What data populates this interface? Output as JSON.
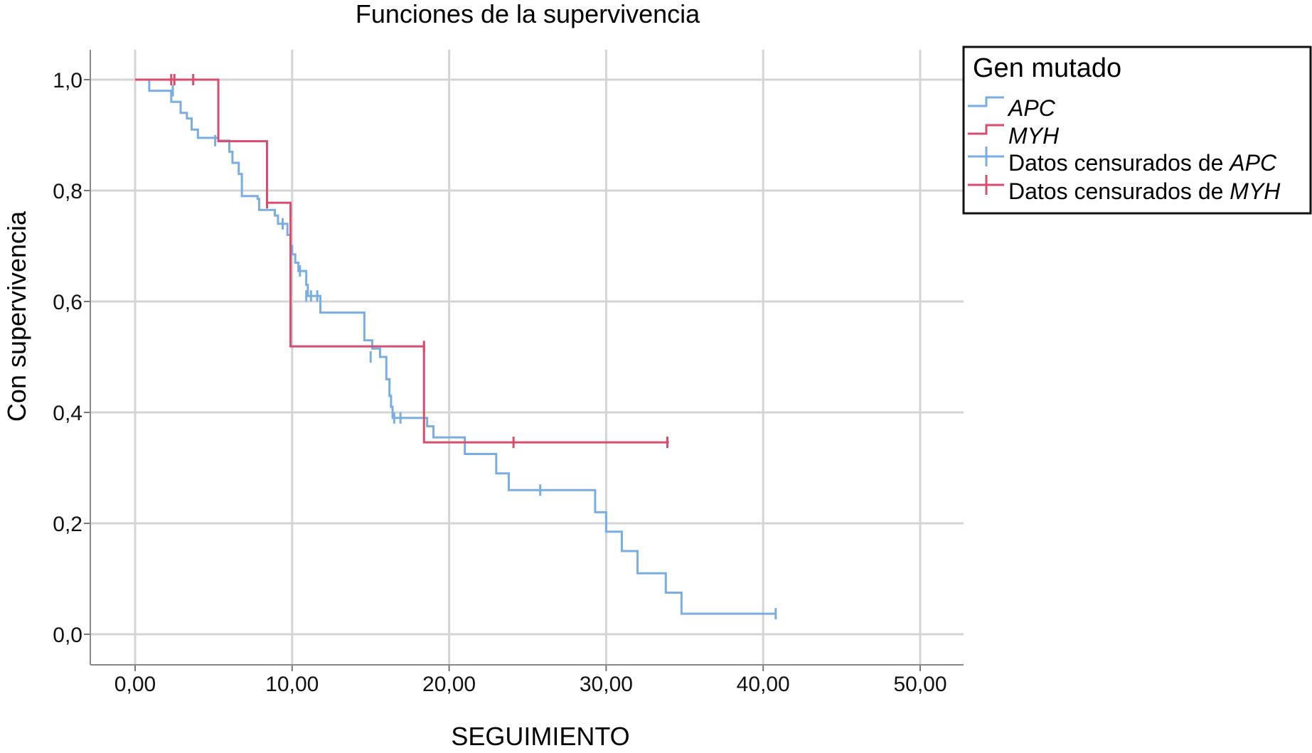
{
  "chart_data": {
    "type": "line",
    "title": "Funciones de la supervivencia",
    "xlabel": "SEGUIMIENTO",
    "ylabel": "Con supervivencia",
    "xlim": [
      0,
      50
    ],
    "ylim": [
      0,
      1
    ],
    "x_ticks": [
      "0,00",
      "10,00",
      "20,00",
      "30,00",
      "40,00",
      "50,00"
    ],
    "y_ticks": [
      "0,0",
      "0,2",
      "0,4",
      "0,6",
      "0,8",
      "1,0"
    ],
    "grid": true,
    "legend": {
      "title": "Gen mutado",
      "placement": "top-right",
      "entries": [
        {
          "prefix": "",
          "name": "APC",
          "kind": "line",
          "series": "APC"
        },
        {
          "prefix": "",
          "name": "MYH",
          "kind": "line",
          "series": "MYH"
        },
        {
          "prefix": "Datos censurados de ",
          "name": "APC",
          "kind": "censor",
          "series": "APC"
        },
        {
          "prefix": "Datos censurados de ",
          "name": "MYH",
          "kind": "censor",
          "series": "MYH"
        }
      ]
    },
    "series": [
      {
        "name": "APC",
        "color": "#7aaee3",
        "steps": [
          [
            0,
            1.0
          ],
          [
            0.9,
            0.98
          ],
          [
            2.3,
            0.96
          ],
          [
            2.9,
            0.94
          ],
          [
            3.3,
            0.93
          ],
          [
            3.6,
            0.91
          ],
          [
            4.0,
            0.895
          ],
          [
            5.3,
            0.89
          ],
          [
            6.0,
            0.87
          ],
          [
            6.2,
            0.85
          ],
          [
            6.6,
            0.83
          ],
          [
            6.8,
            0.79
          ],
          [
            7.8,
            0.785
          ],
          [
            7.9,
            0.765
          ],
          [
            8.9,
            0.755
          ],
          [
            9.1,
            0.74
          ],
          [
            9.7,
            0.72
          ],
          [
            9.9,
            0.7
          ],
          [
            10.0,
            0.685
          ],
          [
            10.2,
            0.67
          ],
          [
            10.4,
            0.655
          ],
          [
            10.9,
            0.63
          ],
          [
            11.0,
            0.61
          ],
          [
            11.8,
            0.58
          ],
          [
            14.6,
            0.53
          ],
          [
            15.1,
            0.515
          ],
          [
            15.6,
            0.5
          ],
          [
            16.0,
            0.46
          ],
          [
            16.2,
            0.43
          ],
          [
            16.3,
            0.41
          ],
          [
            16.4,
            0.39
          ],
          [
            18.6,
            0.375
          ],
          [
            19.0,
            0.355
          ],
          [
            21.0,
            0.325
          ],
          [
            23.0,
            0.29
          ],
          [
            23.8,
            0.26
          ],
          [
            29.3,
            0.22
          ],
          [
            30.0,
            0.185
          ],
          [
            31.0,
            0.15
          ],
          [
            32.0,
            0.11
          ],
          [
            33.8,
            0.075
          ],
          [
            34.8,
            0.037
          ]
        ],
        "end": 40.8,
        "censored": [
          [
            2.4,
            0.98
          ],
          [
            5.1,
            0.89
          ],
          [
            9.4,
            0.74
          ],
          [
            10.5,
            0.655
          ],
          [
            10.9,
            0.61
          ],
          [
            11.2,
            0.61
          ],
          [
            11.6,
            0.61
          ],
          [
            15.0,
            0.5
          ],
          [
            16.5,
            0.39
          ],
          [
            16.9,
            0.39
          ],
          [
            25.8,
            0.26
          ],
          [
            40.8,
            0.037
          ]
        ]
      },
      {
        "name": "MYH",
        "color": "#d84d6d",
        "steps": [
          [
            0,
            1.0
          ],
          [
            5.3,
            0.889
          ],
          [
            8.4,
            0.778
          ],
          [
            9.9,
            0.519
          ],
          [
            18.4,
            0.346
          ]
        ],
        "end": 34.0,
        "censored": [
          [
            2.3,
            1.0
          ],
          [
            2.5,
            1.0
          ],
          [
            3.7,
            1.0
          ],
          [
            8.4,
            0.778
          ],
          [
            18.4,
            0.519
          ],
          [
            24.1,
            0.346
          ],
          [
            33.9,
            0.346
          ]
        ]
      }
    ]
  }
}
